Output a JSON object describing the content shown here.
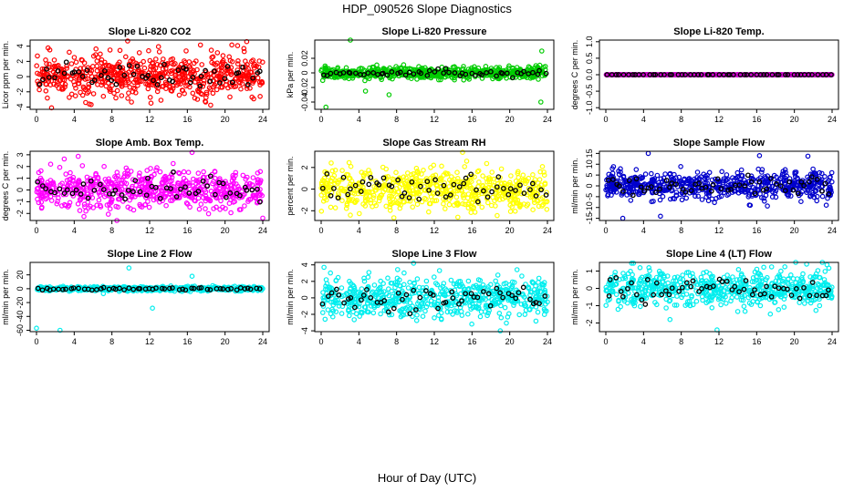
{
  "figure": {
    "title": "HDP_090526  Slope Diagnostics",
    "xlabel": "Hour of Day (UTC)"
  },
  "chart_data": [
    {
      "type": "scatter",
      "title": "Slope Li-820 CO2",
      "ylabel": "Licor ppm per min.",
      "xlim": [
        0,
        24
      ],
      "xticks": [
        0,
        4,
        8,
        12,
        16,
        20,
        24
      ],
      "ylim": [
        -4.3,
        4.8
      ],
      "yticks": [
        -4,
        -2,
        0,
        2,
        4
      ],
      "color": "#ff0000",
      "spread": 1.4,
      "extremes": [
        [
          13.2,
          -3.1
        ],
        [
          22.3,
          4.6
        ],
        [
          1.6,
          -4.1
        ],
        [
          7.8,
          3.5
        ]
      ],
      "series": [
        {
          "name": "",
          "n_points": 620
        },
        {
          "name": "",
          "n_points": 55,
          "color": "#000000"
        }
      ]
    },
    {
      "type": "scatter",
      "title": "Slope Li-820 Pressure",
      "ylabel": "kPa per min.",
      "xlim": [
        0,
        24
      ],
      "xticks": [
        0,
        4,
        8,
        12,
        16,
        20,
        24
      ],
      "ylim": [
        -0.05,
        0.045
      ],
      "yticks": [
        -0.04,
        -0.02,
        0.0,
        0.02
      ],
      "color": "#00cc00",
      "spread": 0.004,
      "extremes": [
        [
          3.1,
          0.045
        ],
        [
          0.5,
          -0.047
        ],
        [
          23.4,
          0.03
        ],
        [
          23.3,
          -0.04
        ],
        [
          7.2,
          -0.03
        ],
        [
          4.7,
          -0.025
        ]
      ],
      "series": [
        {
          "name": "",
          "n_points": 620
        },
        {
          "name": "",
          "n_points": 55,
          "color": "#000000"
        }
      ]
    },
    {
      "type": "scatter",
      "title": "Slope Li-820 Temp.",
      "ylabel": "degrees C per min.",
      "xlim": [
        0,
        24
      ],
      "xticks": [
        0,
        4,
        8,
        12,
        16,
        20,
        24
      ],
      "ylim": [
        -1.05,
        1.05
      ],
      "yticks": [
        -1.0,
        -0.5,
        0.0,
        0.5,
        1.0
      ],
      "color": "#cc00cc",
      "spread": 0.0,
      "extremes": [],
      "series": [
        {
          "name": "",
          "n_points": 620
        },
        {
          "name": "",
          "n_points": 55,
          "color": "#000000"
        }
      ]
    },
    {
      "type": "scatter",
      "title": "Slope Amb. Box Temp.",
      "ylabel": "degrees C per min.",
      "xlim": [
        0,
        24
      ],
      "xticks": [
        0,
        4,
        8,
        12,
        16,
        20,
        24
      ],
      "ylim": [
        -2.6,
        3.3
      ],
      "yticks": [
        -2,
        -1,
        0,
        1,
        2,
        3
      ],
      "color": "#ff00ff",
      "spread": 0.8,
      "extremes": [
        [
          16.5,
          3.2
        ],
        [
          24.0,
          -2.4
        ],
        [
          1.5,
          2.2
        ]
      ],
      "series": [
        {
          "name": "",
          "n_points": 620
        },
        {
          "name": "",
          "n_points": 55,
          "color": "#000000"
        }
      ]
    },
    {
      "type": "scatter",
      "title": "Slope Gas Stream RH",
      "ylabel": "percent per min.",
      "xlim": [
        0,
        24
      ],
      "xticks": [
        0,
        4,
        8,
        12,
        16,
        20,
        24
      ],
      "ylim": [
        -2.9,
        3.5
      ],
      "yticks": [
        -2,
        0,
        2
      ],
      "color": "#ffff00",
      "spread": 0.9,
      "extremes": [
        [
          15.0,
          3.4
        ],
        [
          14.5,
          -2.6
        ],
        [
          3.1,
          -2.4
        ]
      ],
      "series": [
        {
          "name": "",
          "n_points": 620
        },
        {
          "name": "",
          "n_points": 55,
          "color": "#000000"
        }
      ]
    },
    {
      "type": "scatter",
      "title": "Slope Sample Flow",
      "ylabel": "ml/min per min.",
      "xlim": [
        0,
        24
      ],
      "xticks": [
        0,
        4,
        8,
        12,
        16,
        20,
        24
      ],
      "ylim": [
        -16,
        16
      ],
      "yticks": [
        -15,
        -10,
        -5,
        0,
        5,
        10,
        15
      ],
      "color": "#0000cc",
      "spread": 3.2,
      "extremes": [
        [
          4.5,
          15
        ],
        [
          1.8,
          -15
        ],
        [
          16.3,
          14
        ],
        [
          5.8,
          -14
        ]
      ],
      "series": [
        {
          "name": "",
          "n_points": 620
        },
        {
          "name": "",
          "n_points": 55,
          "color": "#000000"
        }
      ]
    },
    {
      "type": "scatter",
      "title": "Slope Line 2 Flow",
      "ylabel": "ml/min per min.",
      "xlim": [
        0,
        24
      ],
      "xticks": [
        0,
        4,
        8,
        12,
        16,
        20,
        24
      ],
      "ylim": [
        -62,
        38
      ],
      "yticks": [
        -60,
        -40,
        -20,
        0,
        20
      ],
      "color": "#00eeee",
      "spread": 1.5,
      "extremes": [
        [
          0,
          -57
        ],
        [
          2.5,
          -60
        ],
        [
          12.3,
          -28
        ],
        [
          9.8,
          30
        ],
        [
          16.5,
          18
        ]
      ],
      "series": [
        {
          "name": "",
          "n_points": 620
        },
        {
          "name": "",
          "n_points": 55,
          "color": "#000000"
        }
      ]
    },
    {
      "type": "scatter",
      "title": "Slope Line 3 Flow",
      "ylabel": "ml/min per min.",
      "xlim": [
        0,
        24
      ],
      "xticks": [
        0,
        4,
        8,
        12,
        16,
        20,
        24
      ],
      "ylim": [
        -4.1,
        4.3
      ],
      "yticks": [
        -4,
        -2,
        0,
        2,
        4
      ],
      "color": "#00eeee",
      "spread": 1.2,
      "extremes": [
        [
          9.8,
          4.2
        ],
        [
          19.0,
          -4.0
        ],
        [
          0.3,
          3.7
        ]
      ],
      "series": [
        {
          "name": "",
          "n_points": 620
        },
        {
          "name": "",
          "n_points": 55,
          "color": "#000000"
        }
      ]
    },
    {
      "type": "scatter",
      "title": "Slope Line 4 (LT) Flow",
      "ylabel": "ml/min per min.",
      "xlim": [
        0,
        24
      ],
      "xticks": [
        0,
        4,
        8,
        12,
        16,
        20,
        24
      ],
      "ylim": [
        -2.5,
        1.5
      ],
      "yticks": [
        -2,
        -1,
        0,
        1
      ],
      "color": "#00eeee",
      "spread": 0.5,
      "extremes": [
        [
          11.8,
          -2.4
        ],
        [
          21.3,
          1.4
        ],
        [
          6.8,
          -1.8
        ]
      ],
      "series": [
        {
          "name": "",
          "n_points": 620
        },
        {
          "name": "",
          "n_points": 55,
          "color": "#000000"
        }
      ]
    }
  ]
}
